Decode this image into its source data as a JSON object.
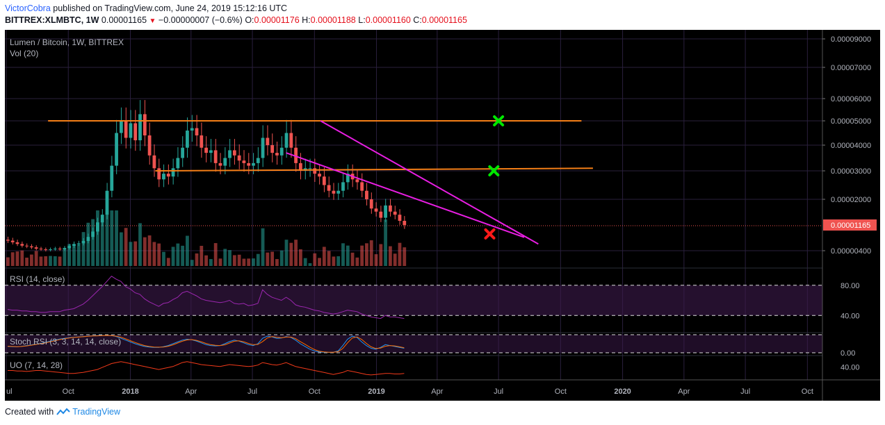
{
  "header": {
    "author": "VictorCobra",
    "published_text": "published on TradingView.com, June 24, 2019 15:12:16 UTC",
    "symbol_line": "BITTREX:XLMBTC, 1W",
    "price": "0.00001165",
    "change": "−0.00000007 (−0.6%)",
    "o_label": "O:",
    "o_value": "0.00001176",
    "h_label": "H:",
    "h_value": "0.00001188",
    "l_label": "L:",
    "l_value": "0.00001160",
    "c_label": "C:",
    "c_value": "0.00001165"
  },
  "footer": {
    "created_text": "Created with",
    "brand": "TradingView"
  },
  "colors": {
    "up": "#26a69a",
    "down": "#ef5350",
    "orange": "#f57f17",
    "magenta": "#e91ee3",
    "green_mark": "#00e600",
    "red_mark": "#ff1a1a",
    "rsi": "#9c27b0",
    "uo": "#f23a1a",
    "stoch_k": "#2196f3",
    "stoch_d": "#ff6d00"
  },
  "chart_data": {
    "type": "candlestick",
    "title": "Lumen / Bitcoin, 1W, BITTREX",
    "volume_label": "Vol (20)",
    "current_price_label": "0.00001165",
    "y_ticks": [
      "0.00009000",
      "0.00007000",
      "0.00006000",
      "0.00005000",
      "0.00004000",
      "0.00003000",
      "0.00002000",
      "0.00000400"
    ],
    "y_tick_values": [
      9e-05,
      7e-05,
      6e-05,
      5e-05,
      4e-05,
      3e-05,
      2e-05,
      4e-06
    ],
    "x_ticks": [
      "ul",
      "Oct",
      "2018",
      "Apr",
      "Jul",
      "Oct",
      "2019",
      "Apr",
      "Jul",
      "Oct",
      "2020",
      "Apr",
      "Jul",
      "Oct"
    ],
    "x_tick_bold": [
      false,
      false,
      true,
      false,
      false,
      false,
      true,
      false,
      false,
      false,
      true,
      false,
      false,
      false
    ],
    "current_price": 1.165e-05,
    "close_series": [
      7e-06,
      6.5e-06,
      6e-06,
      5.5e-06,
      5.3e-06,
      5e-06,
      4.6e-06,
      4.4e-06,
      4.2e-06,
      4.4e-06,
      4.6e-06,
      4.4e-06,
      4.8e-06,
      5.4e-06,
      6e-06,
      6.2e-06,
      6.9e-06,
      8.1e-06,
      9.7e-06,
      1.25e-05,
      1.5e-05,
      2.3e-05,
      3.2e-05,
      4.5e-05,
      5e-05,
      4.3e-05,
      4.9e-05,
      4.2e-05,
      5.3e-05,
      4.4e-05,
      3.6e-05,
      3.1e-05,
      2.7e-05,
      2.9e-05,
      2.8e-05,
      3.1e-05,
      3.5e-05,
      3.9e-05,
      4.6e-05,
      4.7e-05,
      4.4e-05,
      3.9e-05,
      3.7e-05,
      3.8e-05,
      3.3e-05,
      3.2e-05,
      3.5e-05,
      3.8e-05,
      3.6e-05,
      3.4e-05,
      3.3e-05,
      3.2e-05,
      3.3e-05,
      3.5e-05,
      4.3e-05,
      4e-05,
      3.7e-05,
      3.6e-05,
      3.9e-05,
      4.5e-05,
      3.9e-05,
      3.3e-05,
      3e-05,
      3.1e-05,
      3.1e-05,
      2.9e-05,
      2.8e-05,
      2.5e-05,
      2.3e-05,
      2.2e-05,
      2.3e-05,
      2.6e-05,
      2.9e-05,
      2.7e-05,
      2.6e-05,
      2.3e-05,
      2e-05,
      1.7e-05,
      1.6e-05,
      1.4e-05,
      1.8e-05,
      1.6e-05,
      1.5e-05,
      1.3e-05,
      1.165e-05
    ],
    "lines": [
      {
        "name": "resistance",
        "from": [
          "2017-09-01",
          5e-05
        ],
        "to": [
          "2019-11-01",
          5e-05
        ]
      },
      {
        "name": "support",
        "from": [
          "2018-02-07",
          3e-05
        ],
        "to": [
          "2019-11-18",
          3.1e-05
        ]
      },
      {
        "name": "wedge-upper",
        "from": [
          "2018-10-10",
          5e-05
        ],
        "to": [
          "2019-08-29",
          6e-06
        ]
      },
      {
        "name": "wedge-lower",
        "from": [
          "2018-08-20",
          3.7e-05
        ],
        "to": [
          "2019-08-08",
          8e-06
        ]
      }
    ],
    "markers": [
      {
        "type": "target",
        "date": "2019-07-01",
        "price": 5e-05
      },
      {
        "type": "target",
        "date": "2019-06-24",
        "price": 3e-05
      },
      {
        "type": "stop",
        "date": "2019-06-18",
        "price": 9e-06
      }
    ],
    "indicators": [
      {
        "label": "RSI (14, close)",
        "ticks": [
          "80.00",
          "40.00"
        ],
        "tick_values": [
          80,
          40
        ],
        "series": [
          48,
          47,
          47,
          46,
          46,
          45,
          45,
          44,
          44,
          45,
          45,
          45,
          47,
          48,
          49,
          52,
          55,
          60,
          66,
          72,
          78,
          85,
          92,
          88,
          85,
          78,
          75,
          70,
          68,
          62,
          58,
          55,
          52,
          56,
          57,
          61,
          64,
          70,
          72,
          69,
          66,
          62,
          60,
          59,
          58,
          57,
          58,
          60,
          56,
          55,
          56,
          53,
          54,
          56,
          74,
          68,
          64,
          62,
          60,
          64,
          60,
          54,
          52,
          51,
          49,
          47,
          46,
          44,
          43,
          42,
          43,
          45,
          47,
          46,
          45,
          42,
          40,
          38,
          37,
          36,
          40,
          38,
          38,
          37,
          36
        ]
      },
      {
        "label": "Stoch RSI (3, 3, 14, 14, close)",
        "ticks": [
          "0.00"
        ],
        "tick_values": [
          0
        ],
        "k_series": [
          35,
          34,
          33,
          36,
          40,
          44,
          48,
          52,
          58,
          64,
          70,
          76,
          80,
          84,
          86,
          88,
          90,
          92,
          94,
          95,
          96,
          96,
          95,
          90,
          80,
          70,
          60,
          50,
          42,
          35,
          32,
          30,
          30,
          34,
          40,
          50,
          60,
          70,
          75,
          72,
          65,
          55,
          45,
          40,
          38,
          40,
          50,
          62,
          70,
          65,
          55,
          45,
          40,
          50,
          80,
          92,
          88,
          80,
          82,
          90,
          85,
          70,
          50,
          35,
          20,
          10,
          5,
          3,
          2,
          3,
          10,
          40,
          75,
          92,
          85,
          60,
          40,
          25,
          20,
          30,
          45,
          40,
          35,
          30,
          25
        ],
        "d_series": [
          36,
          35,
          34,
          35,
          38,
          42,
          46,
          50,
          55,
          61,
          67,
          73,
          78,
          82,
          85,
          87,
          89,
          91,
          93,
          94,
          95,
          96,
          95,
          92,
          86,
          77,
          67,
          57,
          48,
          40,
          35,
          32,
          31,
          32,
          36,
          44,
          54,
          64,
          71,
          73,
          69,
          61,
          52,
          45,
          41,
          40,
          44,
          54,
          64,
          66,
          61,
          52,
          45,
          46,
          62,
          82,
          90,
          86,
          83,
          87,
          87,
          78,
          62,
          47,
          31,
          18,
          9,
          5,
          3,
          3,
          6,
          24,
          55,
          82,
          88,
          74,
          52,
          33,
          24,
          26,
          36,
          40,
          38,
          33,
          28
        ]
      },
      {
        "label": "UO (7, 14, 28)",
        "ticks": [
          "40.00"
        ],
        "tick_values": [
          40
        ],
        "series": [
          44,
          44,
          43,
          43,
          42,
          43,
          44,
          44,
          43,
          42,
          41,
          40,
          39,
          38,
          38,
          39,
          40,
          42,
          44,
          46,
          50,
          54,
          58,
          60,
          62,
          60,
          58,
          56,
          54,
          52,
          50,
          48,
          46,
          48,
          50,
          52,
          56,
          60,
          62,
          60,
          58,
          56,
          55,
          54,
          53,
          52,
          54,
          56,
          55,
          54,
          53,
          52,
          53,
          55,
          60,
          58,
          56,
          55,
          57,
          60,
          56,
          52,
          50,
          48,
          46,
          44,
          42,
          40,
          38,
          36,
          38,
          40,
          44,
          42,
          40,
          38,
          36,
          35,
          36,
          37,
          38,
          38,
          37,
          37,
          38
        ]
      }
    ]
  }
}
